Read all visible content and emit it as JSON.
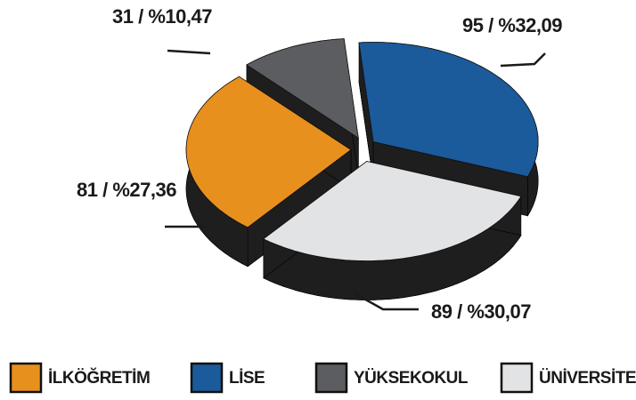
{
  "chart_data": {
    "type": "pie3d",
    "categories": [
      "İLKÖĞRETİM",
      "LİSE",
      "YÜKSEKOKUL",
      "ÜNİVERSİTE"
    ],
    "values": [
      81,
      95,
      31,
      89
    ],
    "value_labels": [
      "81 / %27,36",
      "95 / %32,09",
      "31 / %10,47",
      "89 / %30,07"
    ],
    "colors": [
      "#e8901e",
      "#1b5a9b",
      "#5b5d60",
      "#e2e3e5"
    ],
    "legend": "bottom"
  }
}
